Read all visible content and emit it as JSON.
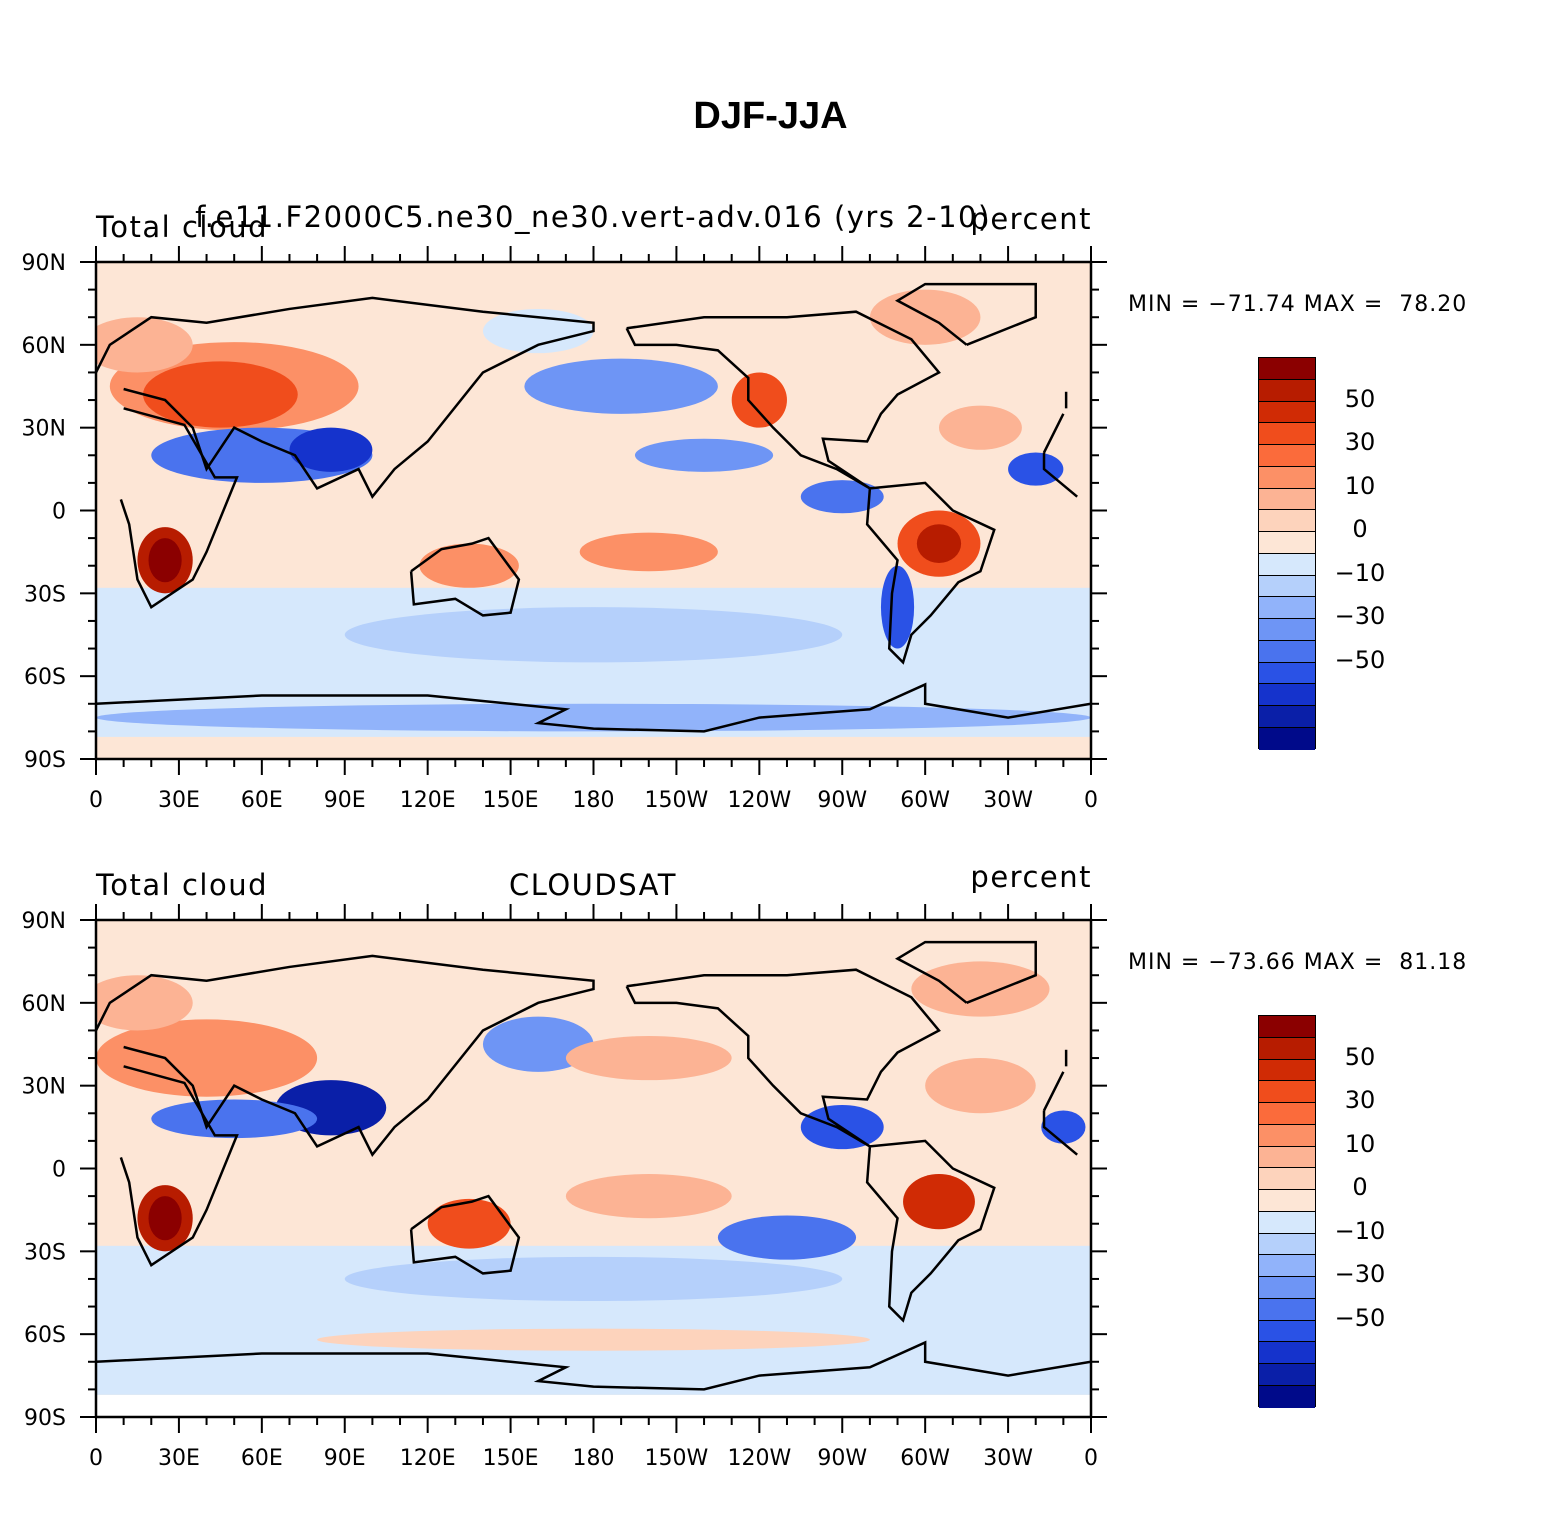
{
  "figure": {
    "title": "DJF-JJA"
  },
  "colorbar": {
    "colors": [
      "#8b0000",
      "#b71c00",
      "#d02b05",
      "#f04d1c",
      "#fb6b3b",
      "#fc9066",
      "#fcb394",
      "#fdd3bc",
      "#fde6d6",
      "#d6e8fc",
      "#b5d0fb",
      "#91b3fa",
      "#6e95f5",
      "#4a73ee",
      "#2a52e6",
      "#1533cc",
      "#0a1fa8",
      "#000a8a"
    ],
    "labels": [
      "50",
      "30",
      "10",
      "0",
      "−10",
      "−30",
      "−50"
    ]
  },
  "x_ticks": [
    "0",
    "30E",
    "60E",
    "90E",
    "120E",
    "150E",
    "180",
    "150W",
    "120W",
    "90W",
    "60W",
    "30W",
    "0"
  ],
  "y_ticks": [
    "90N",
    "60N",
    "30N",
    "0",
    "30S",
    "60S",
    "90S"
  ],
  "panels": [
    {
      "left_title": "Total cloud",
      "center_title": "f.e11.F2000C5.ne30_ne30.vert-adv.016 (yrs 2-10)",
      "right_title": "percent",
      "stats": "MIN = −71.74 MAX =  78.20",
      "min": -71.74,
      "max": 78.2
    },
    {
      "left_title": "Total cloud",
      "center_title": "CLOUDSAT",
      "right_title": "percent",
      "stats": "MIN = −73.66 MAX =  81.18",
      "min": -73.66,
      "max": 81.18
    }
  ]
}
